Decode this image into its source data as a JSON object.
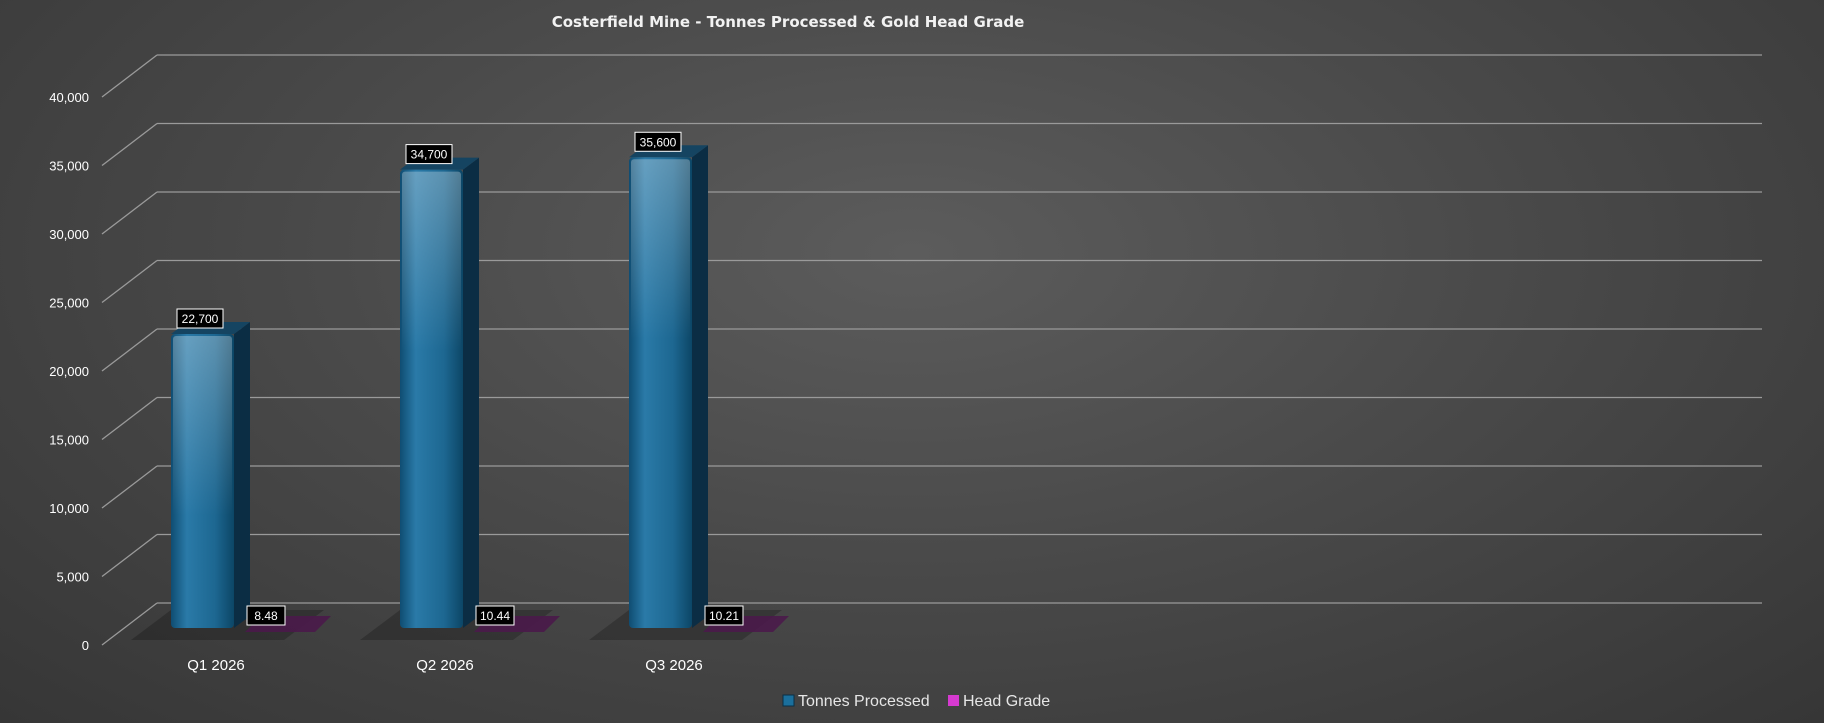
{
  "chart_data": {
    "type": "bar",
    "title": "Costerfield Mine - Tonnes Processed & Gold Head Grade",
    "categories": [
      "Q1 2026",
      "Q2 2026",
      "Q3 2026"
    ],
    "series": [
      {
        "name": "Tonnes Processed",
        "values": [
          22700,
          34700,
          35600
        ],
        "labels": [
          "22,700",
          "34,700",
          "35,600"
        ],
        "color": "#1b6f9c"
      },
      {
        "name": "Head Grade",
        "values": [
          8.48,
          10.44,
          10.21
        ],
        "labels": [
          "8.48",
          "10.44",
          "10.21"
        ],
        "color": "#d63ad0"
      }
    ],
    "y_ticks": [
      "0",
      "5,000",
      "10,000",
      "15,000",
      "20,000",
      "25,000",
      "30,000",
      "35,000",
      "40,000"
    ],
    "ylim": [
      0,
      40000
    ],
    "grid": true,
    "legend": "bottom",
    "style": "3d-column"
  }
}
